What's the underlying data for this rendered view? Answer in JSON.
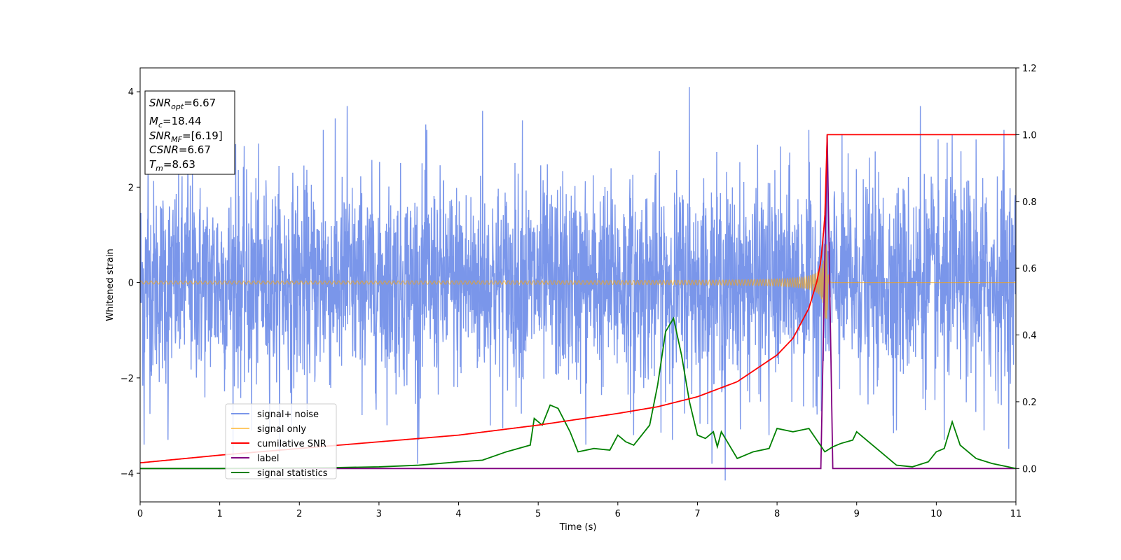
{
  "chart_data": {
    "type": "line",
    "xlabel": "Time (s)",
    "ylabel": "Whitened strain",
    "xlim": [
      0,
      11
    ],
    "ylim": [
      -4.6,
      4.5
    ],
    "y2lim": [
      -0.1,
      1.2
    ],
    "x_ticks": [
      "0",
      "1",
      "2",
      "3",
      "4",
      "5",
      "6",
      "7",
      "8",
      "9",
      "10",
      "11"
    ],
    "y_ticks": [
      "4",
      "2",
      "0",
      "−2",
      "−4"
    ],
    "y2_ticks": [
      "1.2",
      "1.0",
      "0.8",
      "0.6",
      "0.4",
      "0.2",
      "0.0"
    ],
    "grid": false,
    "legend_position": "lower-left",
    "annotation": {
      "lines": [
        {
          "var": "SNR",
          "sub": "opt",
          "value": "=6.67"
        },
        {
          "var": "M",
          "sub": "c",
          "value": "=18.44"
        },
        {
          "var": "SNR",
          "sub": "MF",
          "value": "=[6.19]"
        },
        {
          "var": "CSNR",
          "sub": "",
          "value": "=6.67"
        },
        {
          "var": "T",
          "sub": "m",
          "value": "=8.63"
        }
      ]
    },
    "series": [
      {
        "name": "signal+ noise",
        "axis": "left",
        "color": "#4169e1",
        "description_values": {
          "std": 1.05,
          "range": [
            -4.2,
            4.1
          ],
          "duration": [
            0,
            11
          ]
        },
        "peaks": [
          [
            0.1,
            2.8
          ],
          [
            0.6,
            2.9
          ],
          [
            1.2,
            2.9
          ],
          [
            2.3,
            3.2
          ],
          [
            2.6,
            3.7
          ],
          [
            3.6,
            3.2
          ],
          [
            4.3,
            3.6
          ],
          [
            4.8,
            3.4
          ],
          [
            6.9,
            4.1
          ],
          [
            7.35,
            -4.15
          ],
          [
            8.4,
            3.2
          ],
          [
            9.8,
            3.7
          ],
          [
            10.2,
            3.1
          ],
          [
            10.5,
            3.0
          ],
          [
            10.85,
            3.2
          ],
          [
            0.05,
            -3.4
          ],
          [
            0.35,
            -3.3
          ],
          [
            1.4,
            -3.1
          ],
          [
            1.9,
            -3.0
          ],
          [
            3.5,
            -3.3
          ],
          [
            5.6,
            -3.4
          ],
          [
            6.2,
            -3.2
          ],
          [
            7.9,
            -3.2
          ],
          [
            9.5,
            -3.1
          ],
          [
            10.1,
            -3.3
          ],
          [
            10.6,
            -3.1
          ]
        ]
      },
      {
        "name": "signal only",
        "axis": "left",
        "color": "#ffa500",
        "chirp": {
          "t_merge": 8.63,
          "amp_at_merge": 0.8,
          "base_amp": 0.03
        }
      },
      {
        "name": "cumilative SNR",
        "axis": "right",
        "color": "#ff0000",
        "x": [
          0,
          1,
          2,
          3,
          4,
          5,
          6,
          6.5,
          7,
          7.5,
          8,
          8.2,
          8.4,
          8.5,
          8.55,
          8.6,
          8.63,
          11
        ],
        "values": [
          0.017,
          0.04,
          0.06,
          0.08,
          0.1,
          0.13,
          0.165,
          0.185,
          0.215,
          0.26,
          0.34,
          0.39,
          0.48,
          0.56,
          0.62,
          0.75,
          1.0,
          1.0
        ]
      },
      {
        "name": "label",
        "axis": "right",
        "color": "#800080",
        "x": [
          0,
          8.55,
          8.63,
          8.7,
          11
        ],
        "values": [
          0,
          0,
          1.0,
          0,
          0
        ]
      },
      {
        "name": "signal statistics",
        "axis": "right",
        "color": "#008000",
        "x": [
          0,
          1,
          2,
          2.5,
          3,
          3.5,
          4,
          4.3,
          4.6,
          4.9,
          4.95,
          5.05,
          5.15,
          5.25,
          5.4,
          5.5,
          5.7,
          5.9,
          6.0,
          6.1,
          6.2,
          6.4,
          6.5,
          6.6,
          6.7,
          6.8,
          6.9,
          7.0,
          7.1,
          7.2,
          7.25,
          7.3,
          7.5,
          7.7,
          7.9,
          8.0,
          8.2,
          8.4,
          8.5,
          8.6,
          8.7,
          8.8,
          8.95,
          9.0,
          9.15,
          9.3,
          9.5,
          9.7,
          9.9,
          10.0,
          10.1,
          10.2,
          10.3,
          10.5,
          10.7,
          10.9,
          11.0
        ],
        "values": [
          0,
          0,
          0.002,
          0.003,
          0.005,
          0.01,
          0.02,
          0.025,
          0.05,
          0.07,
          0.15,
          0.13,
          0.19,
          0.18,
          0.11,
          0.05,
          0.06,
          0.055,
          0.1,
          0.08,
          0.07,
          0.13,
          0.25,
          0.41,
          0.45,
          0.34,
          0.2,
          0.1,
          0.09,
          0.11,
          0.065,
          0.11,
          0.03,
          0.05,
          0.06,
          0.12,
          0.11,
          0.12,
          0.085,
          0.05,
          0.065,
          0.075,
          0.085,
          0.11,
          0.08,
          0.05,
          0.01,
          0.005,
          0.02,
          0.05,
          0.06,
          0.14,
          0.07,
          0.03,
          0.015,
          0.005,
          0.0
        ]
      }
    ]
  }
}
